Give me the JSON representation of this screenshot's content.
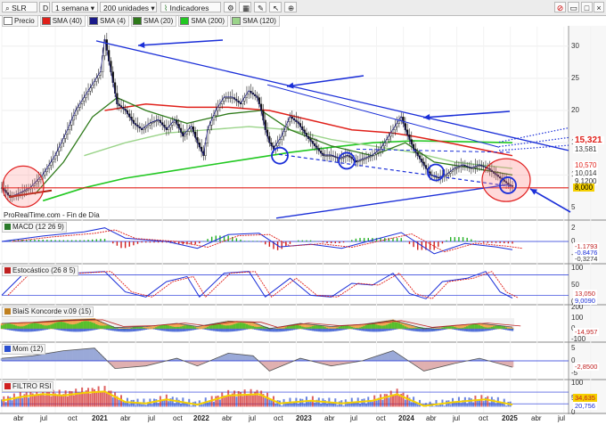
{
  "toolbar": {
    "symbol": "SLR",
    "mode_badge": "D",
    "timeframe": "1 semana",
    "units": "200 unidades",
    "indicators_label": "Indicadores",
    "colors": {
      "bg": "#ececec"
    }
  },
  "legend": [
    {
      "label": "Precio",
      "color": "#ffffff"
    },
    {
      "label": "SMA (40)",
      "color": "#e0201a"
    },
    {
      "label": "SMA (4)",
      "color": "#1a1a8a"
    },
    {
      "label": "SMA (20)",
      "color": "#2e7a1a"
    },
    {
      "label": "SMA (200)",
      "color": "#22c822"
    },
    {
      "label": "SMA (120)",
      "color": "#9bd48a"
    }
  ],
  "source_label": "ProRealTime.com - Fin de Día",
  "main_axis": {
    "ticks": [
      "30",
      "25",
      "20",
      "15",
      "10",
      "5"
    ]
  },
  "price_tags": [
    {
      "text": "15,321",
      "color": "#e0201a",
      "bg": "#ffffff"
    },
    {
      "text": "13,581",
      "color": "#333333",
      "bg": "#ffffff"
    },
    {
      "text": "10,570",
      "color": "#e0201a",
      "bg": "#ffffff"
    },
    {
      "text": "10,014",
      "color": "#333333",
      "bg": "#ffffff"
    },
    {
      "text": "9,1200",
      "color": "#333333",
      "bg": "#ffffff"
    },
    {
      "text": "8,000",
      "color": "#000000",
      "bg": "#f5d000"
    }
  ],
  "panels": [
    {
      "key": "macd",
      "label": "MACD (12 26 9)",
      "axis": [
        "2",
        "0",
        "-2"
      ],
      "tags": [
        "-1,1793",
        "-0,8476",
        "-0,3274"
      ]
    },
    {
      "key": "stoch",
      "label": "Estocástico (26 8 5)",
      "axis": [
        "100",
        "50",
        "0"
      ],
      "tags": [
        "13,050",
        "9,0090"
      ]
    },
    {
      "key": "koncorde",
      "label": "BlaiS Koncorde v.09 (15)",
      "axis": [
        "200",
        "100",
        "0",
        "-100"
      ],
      "tags": [
        "-14,957"
      ]
    },
    {
      "key": "mom",
      "label": "Mom (12)",
      "axis": [
        "5",
        "0",
        "-5"
      ],
      "tags": [
        "-2,8500"
      ]
    },
    {
      "key": "rsi",
      "label": "FILTRO RSI",
      "axis": [
        "100",
        "50",
        "0"
      ],
      "tags": [
        "34,635",
        "20,756"
      ]
    }
  ],
  "x_axis": [
    {
      "text": "abr",
      "bold": false
    },
    {
      "text": "jul",
      "bold": false
    },
    {
      "text": "oct",
      "bold": false
    },
    {
      "text": "2021",
      "bold": true
    },
    {
      "text": "abr",
      "bold": false
    },
    {
      "text": "jul",
      "bold": false
    },
    {
      "text": "oct",
      "bold": false
    },
    {
      "text": "2022",
      "bold": true
    },
    {
      "text": "abr",
      "bold": false
    },
    {
      "text": "jul",
      "bold": false
    },
    {
      "text": "oct",
      "bold": false
    },
    {
      "text": "2023",
      "bold": true
    },
    {
      "text": "abr",
      "bold": false
    },
    {
      "text": "jul",
      "bold": false
    },
    {
      "text": "oct",
      "bold": false
    },
    {
      "text": "2024",
      "bold": true
    },
    {
      "text": "abr",
      "bold": false
    },
    {
      "text": "jul",
      "bold": false
    },
    {
      "text": "oct",
      "bold": false
    },
    {
      "text": "2025",
      "bold": true
    },
    {
      "text": "abr",
      "bold": false
    },
    {
      "text": "jul",
      "bold": false
    }
  ],
  "chart_data": {
    "type": "line",
    "x_unit": "week index (0 = start of 2020-Q2)",
    "ylim": [
      3,
      33
    ],
    "price": [
      [
        0,
        8
      ],
      [
        4,
        6.5
      ],
      [
        8,
        7
      ],
      [
        14,
        8
      ],
      [
        20,
        10
      ],
      [
        26,
        13
      ],
      [
        32,
        17
      ],
      [
        36,
        20
      ],
      [
        40,
        22
      ],
      [
        44,
        24
      ],
      [
        48,
        26
      ],
      [
        50,
        31
      ],
      [
        53,
        26
      ],
      [
        56,
        21
      ],
      [
        60,
        20
      ],
      [
        64,
        18
      ],
      [
        68,
        17
      ],
      [
        72,
        18
      ],
      [
        76,
        18.5
      ],
      [
        80,
        17
      ],
      [
        84,
        18.5
      ],
      [
        88,
        16
      ],
      [
        92,
        17.5
      ],
      [
        95,
        15
      ],
      [
        98,
        13
      ],
      [
        100,
        17
      ],
      [
        104,
        20
      ],
      [
        108,
        22
      ],
      [
        112,
        22
      ],
      [
        116,
        21
      ],
      [
        120,
        23
      ],
      [
        124,
        22
      ],
      [
        126,
        20
      ],
      [
        128,
        17
      ],
      [
        130,
        15
      ],
      [
        132,
        14
      ],
      [
        136,
        16
      ],
      [
        140,
        19
      ],
      [
        144,
        18
      ],
      [
        148,
        16
      ],
      [
        152,
        14.5
      ],
      [
        156,
        13
      ],
      [
        160,
        13
      ],
      [
        164,
        12.5
      ],
      [
        168,
        13
      ],
      [
        172,
        12
      ],
      [
        176,
        12.5
      ],
      [
        180,
        13
      ],
      [
        184,
        14
      ],
      [
        188,
        16
      ],
      [
        192,
        18
      ],
      [
        194,
        19
      ],
      [
        196,
        17
      ],
      [
        200,
        14
      ],
      [
        204,
        12
      ],
      [
        208,
        10
      ],
      [
        212,
        9.5
      ],
      [
        216,
        10
      ],
      [
        220,
        11
      ],
      [
        224,
        11.5
      ],
      [
        228,
        11
      ],
      [
        232,
        11.5
      ],
      [
        236,
        11
      ],
      [
        240,
        10
      ],
      [
        244,
        9
      ],
      [
        246,
        8.5
      ],
      [
        248,
        8.2
      ]
    ],
    "sma40": [
      [
        50,
        20
      ],
      [
        70,
        21
      ],
      [
        90,
        20.5
      ],
      [
        110,
        20.5
      ],
      [
        130,
        20
      ],
      [
        150,
        18.5
      ],
      [
        170,
        17
      ],
      [
        190,
        16.5
      ],
      [
        200,
        16
      ],
      [
        220,
        14.8
      ],
      [
        240,
        13.5
      ],
      [
        248,
        13
      ]
    ],
    "sma20": [
      [
        16,
        7
      ],
      [
        30,
        12
      ],
      [
        44,
        19
      ],
      [
        56,
        22
      ],
      [
        70,
        20
      ],
      [
        90,
        18
      ],
      [
        110,
        19.5
      ],
      [
        126,
        20
      ],
      [
        140,
        17
      ],
      [
        160,
        14.5
      ],
      [
        180,
        13
      ],
      [
        196,
        15
      ],
      [
        210,
        12
      ],
      [
        230,
        11
      ],
      [
        248,
        10
      ]
    ],
    "sma120": [
      [
        40,
        13
      ],
      [
        60,
        15
      ],
      [
        80,
        16.5
      ],
      [
        100,
        17
      ],
      [
        120,
        17.5
      ],
      [
        140,
        17
      ],
      [
        160,
        15.5
      ],
      [
        180,
        14.5
      ],
      [
        200,
        13.5
      ],
      [
        220,
        12
      ],
      [
        248,
        11
      ]
    ],
    "sma200": [
      [
        20,
        6
      ],
      [
        40,
        8
      ],
      [
        60,
        9.5
      ],
      [
        80,
        10.5
      ],
      [
        100,
        11.5
      ],
      [
        120,
        12.5
      ],
      [
        140,
        13.5
      ],
      [
        160,
        14.3
      ],
      [
        180,
        15
      ],
      [
        200,
        15.3
      ],
      [
        220,
        15.2
      ],
      [
        248,
        15
      ]
    ],
    "support_level": 8,
    "macd": [
      [
        0,
        0
      ],
      [
        20,
        0.8
      ],
      [
        40,
        1.4
      ],
      [
        50,
        2
      ],
      [
        60,
        0.5
      ],
      [
        80,
        0
      ],
      [
        95,
        -1
      ],
      [
        110,
        1
      ],
      [
        125,
        1.2
      ],
      [
        135,
        -0.8
      ],
      [
        150,
        -0.4
      ],
      [
        165,
        -1
      ],
      [
        180,
        0.2
      ],
      [
        194,
        1.3
      ],
      [
        210,
        -1.8
      ],
      [
        225,
        -0.3
      ],
      [
        240,
        -0.8
      ],
      [
        248,
        -1.2
      ]
    ],
    "stochastic": [
      [
        0,
        20
      ],
      [
        10,
        80
      ],
      [
        20,
        90
      ],
      [
        35,
        85
      ],
      [
        50,
        90
      ],
      [
        60,
        30
      ],
      [
        70,
        15
      ],
      [
        80,
        60
      ],
      [
        90,
        75
      ],
      [
        96,
        15
      ],
      [
        108,
        85
      ],
      [
        120,
        90
      ],
      [
        128,
        15
      ],
      [
        140,
        70
      ],
      [
        150,
        20
      ],
      [
        160,
        15
      ],
      [
        170,
        55
      ],
      [
        180,
        50
      ],
      [
        190,
        85
      ],
      [
        198,
        25
      ],
      [
        206,
        10
      ],
      [
        214,
        60
      ],
      [
        226,
        70
      ],
      [
        235,
        90
      ],
      [
        242,
        30
      ],
      [
        248,
        12
      ]
    ],
    "momentum": [
      [
        0,
        1
      ],
      [
        15,
        2
      ],
      [
        30,
        4
      ],
      [
        45,
        5
      ],
      [
        55,
        -3
      ],
      [
        70,
        -2
      ],
      [
        85,
        1
      ],
      [
        95,
        -2
      ],
      [
        110,
        3
      ],
      [
        122,
        2
      ],
      [
        130,
        -4
      ],
      [
        145,
        1
      ],
      [
        160,
        -2
      ],
      [
        175,
        0
      ],
      [
        190,
        4
      ],
      [
        205,
        -4
      ],
      [
        220,
        -1
      ],
      [
        232,
        1
      ],
      [
        248,
        -2.5
      ]
    ],
    "rsi": [
      [
        0,
        45
      ],
      [
        10,
        60
      ],
      [
        20,
        70
      ],
      [
        30,
        65
      ],
      [
        40,
        75
      ],
      [
        50,
        80
      ],
      [
        60,
        40
      ],
      [
        70,
        35
      ],
      [
        80,
        50
      ],
      [
        95,
        30
      ],
      [
        110,
        65
      ],
      [
        125,
        70
      ],
      [
        135,
        35
      ],
      [
        150,
        45
      ],
      [
        165,
        35
      ],
      [
        180,
        45
      ],
      [
        192,
        70
      ],
      [
        205,
        25
      ],
      [
        220,
        40
      ],
      [
        235,
        50
      ],
      [
        248,
        30
      ]
    ]
  }
}
